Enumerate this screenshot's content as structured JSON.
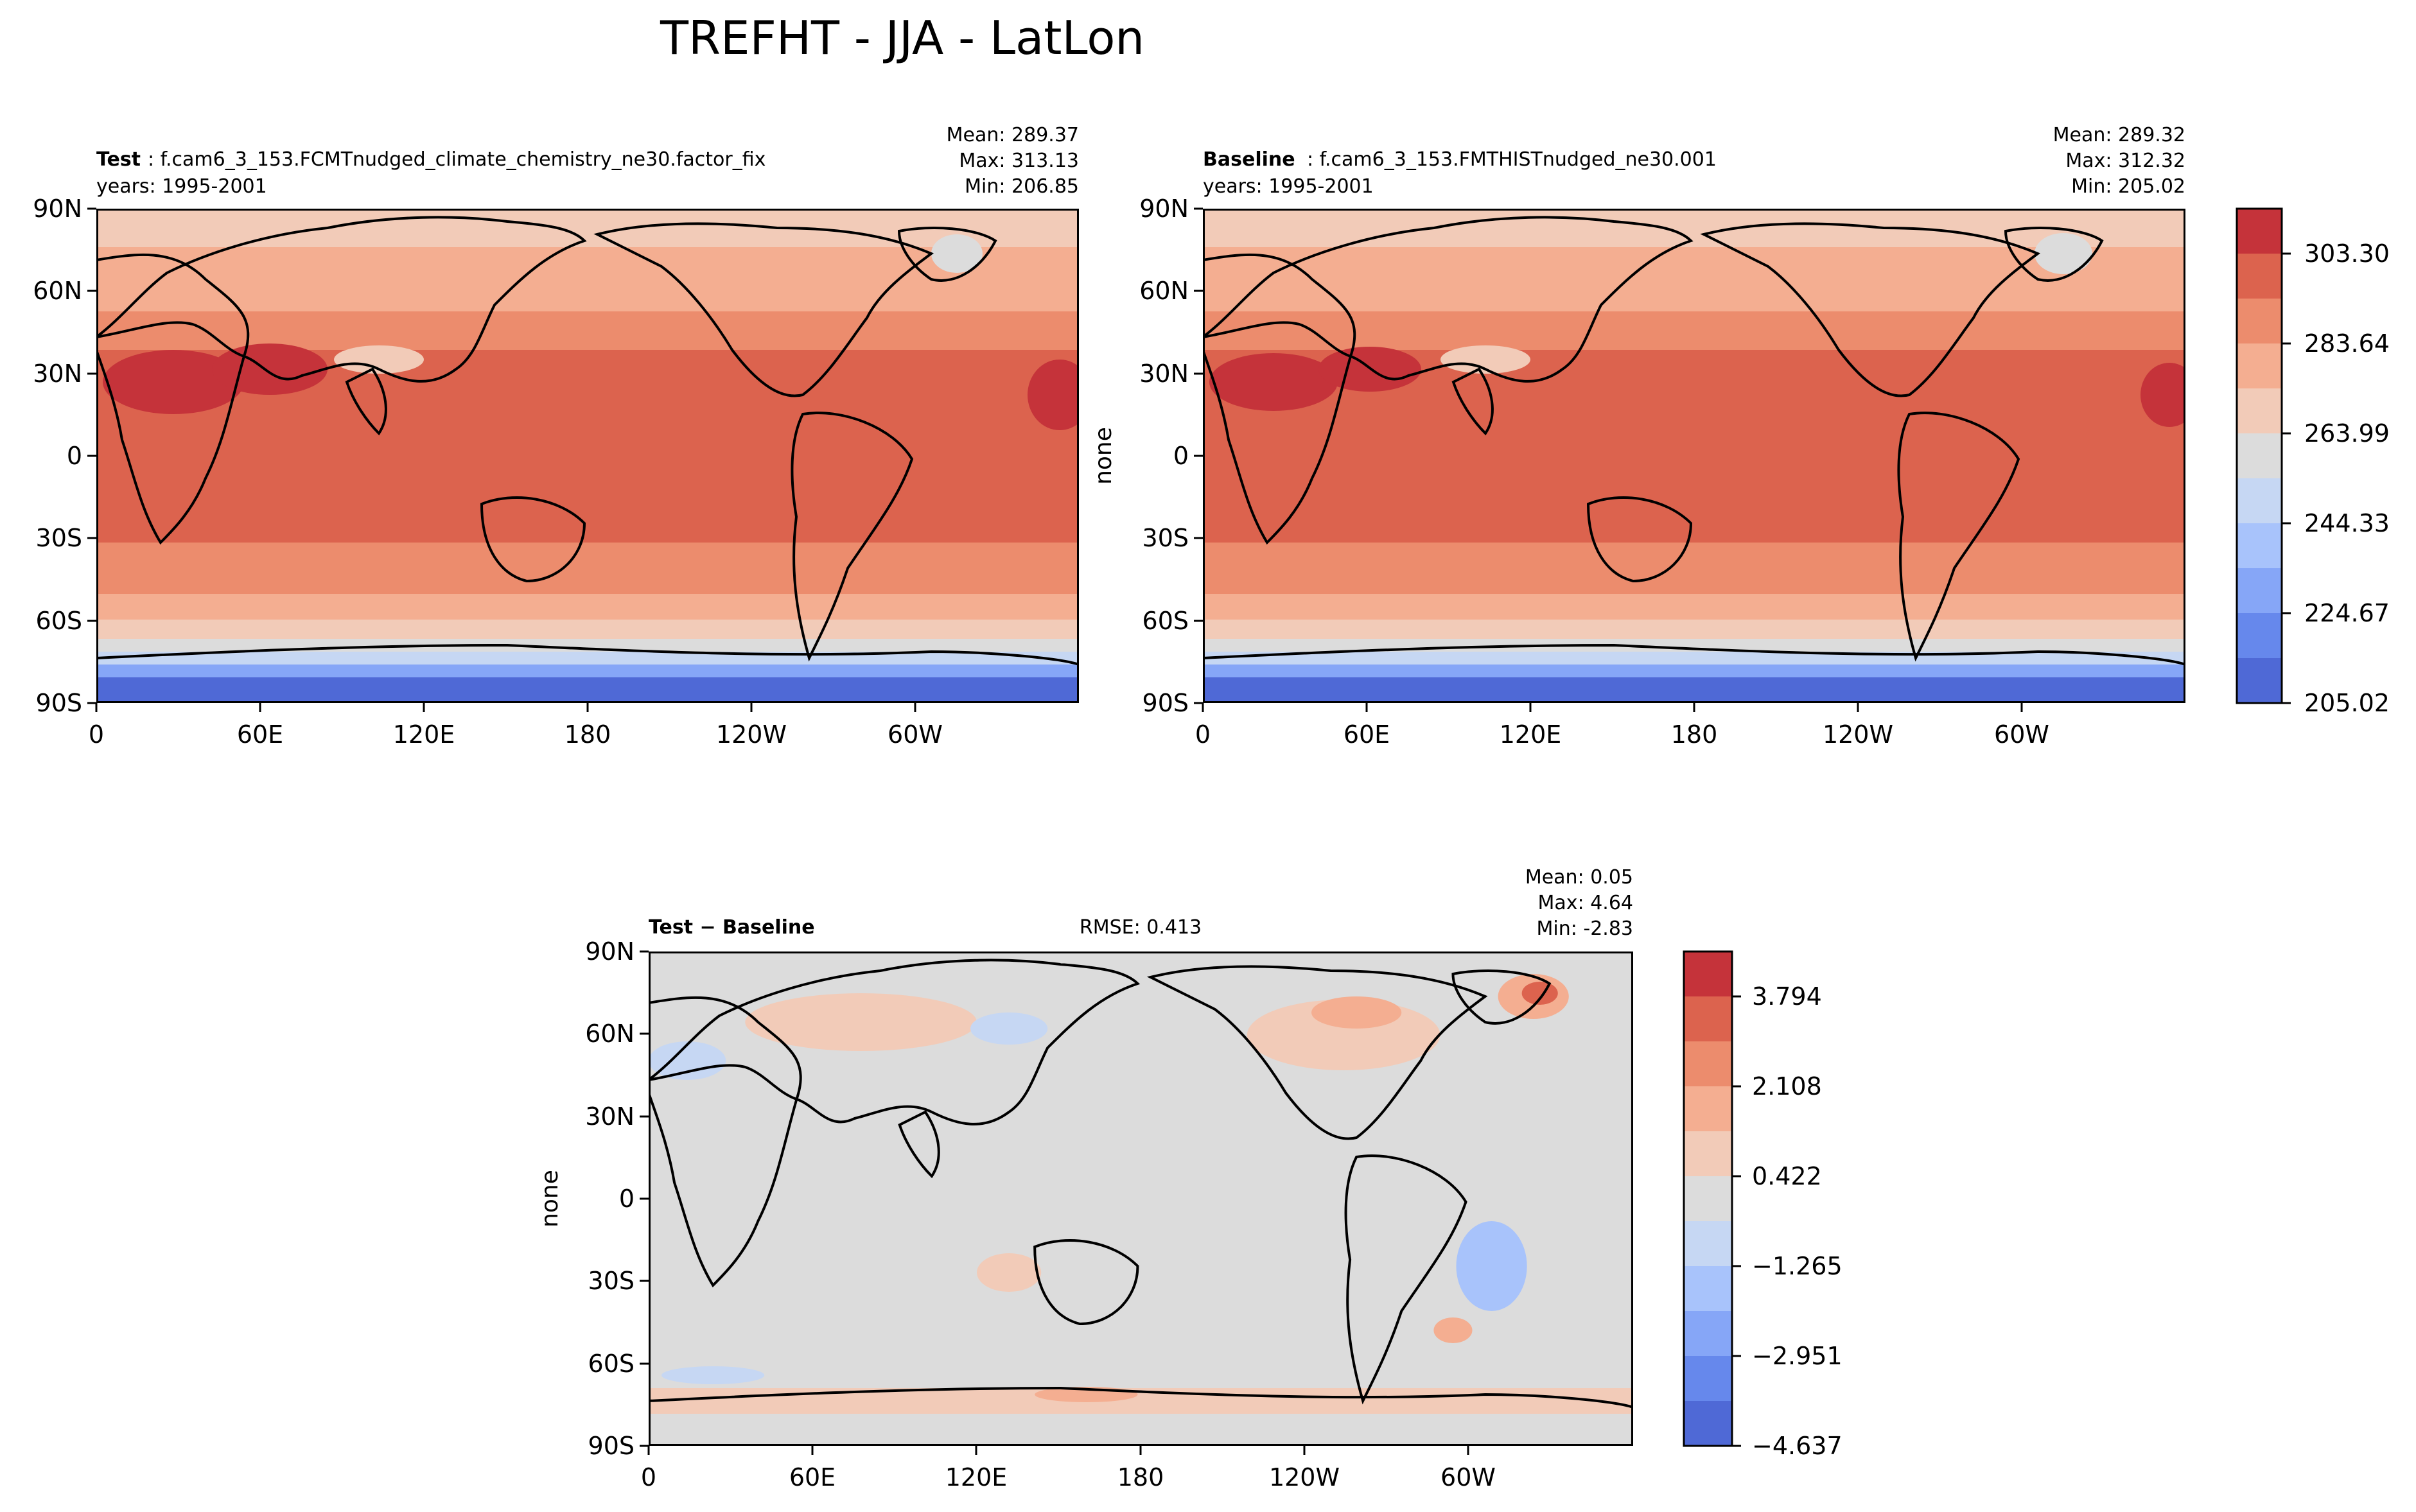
{
  "figure_title": "TREFHT - JJA - LatLon",
  "colors": {
    "levels_cool_to_warm": [
      "#4f69d6",
      "#6688ec",
      "#86a6f7",
      "#a8c3fb",
      "#c6d7f3",
      "#dcdcdc",
      "#f2cbb8",
      "#f4ae91",
      "#ec8c6d",
      "#dc634e",
      "#c5333a"
    ],
    "land_outline": "#000000"
  },
  "chart_data": [
    {
      "type": "heatmap",
      "name": "test-panel",
      "label_bold": "Test",
      "label_text": ": f.cam6_3_153.FCMTnudged_climate_chemistry_ne30.factor_fix",
      "years": "years: 1995-2001",
      "stats": [
        "Mean: 289.37",
        "Max: 313.13",
        "Min: 206.85"
      ],
      "ylabel": "",
      "x_ticks": [
        "0",
        "60E",
        "120E",
        "180",
        "120W",
        "60W"
      ],
      "y_ticks": [
        "90N",
        "60N",
        "30N",
        "0",
        "30S",
        "60S",
        "90S"
      ],
      "xlim": [
        0,
        360
      ],
      "ylim": [
        -90,
        90
      ]
    },
    {
      "type": "heatmap",
      "name": "baseline-panel",
      "label_bold": "Baseline",
      "label_text": ": f.cam6_3_153.FMTHISTnudged_ne30.001",
      "years": "years: 1995-2001",
      "stats": [
        "Mean: 289.32",
        "Max: 312.32",
        "Min: 205.02"
      ],
      "ylabel": "none",
      "x_ticks": [
        "0",
        "60E",
        "120E",
        "180",
        "120W",
        "60W"
      ],
      "y_ticks": [
        "90N",
        "60N",
        "30N",
        "0",
        "30S",
        "60S",
        "90S"
      ],
      "xlim": [
        0,
        360
      ],
      "ylim": [
        -90,
        90
      ],
      "colorbar_ticks": [
        "303.30",
        "283.64",
        "263.99",
        "244.33",
        "224.67",
        "205.02"
      ]
    },
    {
      "type": "heatmap",
      "name": "diff-panel",
      "label_bold": "Test − Baseline",
      "rmse": "RMSE: 0.413",
      "stats": [
        "Mean:  0.05",
        "Max:  4.64",
        "Min: -2.83"
      ],
      "ylabel": "none",
      "x_ticks": [
        "0",
        "60E",
        "120E",
        "180",
        "120W",
        "60W"
      ],
      "y_ticks": [
        "90N",
        "60N",
        "30N",
        "0",
        "30S",
        "60S",
        "90S"
      ],
      "xlim": [
        0,
        360
      ],
      "ylim": [
        -90,
        90
      ],
      "colorbar_ticks": [
        "3.794",
        "2.108",
        "0.422",
        "−1.265",
        "−2.951",
        "−4.637"
      ]
    }
  ]
}
